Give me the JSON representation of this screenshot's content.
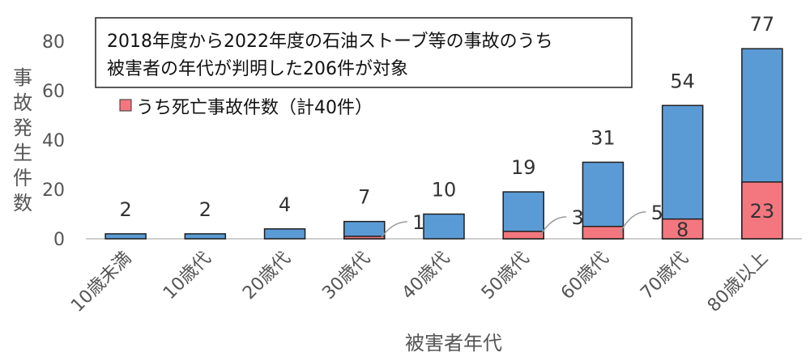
{
  "chart_data": {
    "type": "bar",
    "categories": [
      "10歳未満",
      "10歳代",
      "20歳代",
      "30歳代",
      "40歳代",
      "50歳代",
      "60歳代",
      "70歳代",
      "80歳以上"
    ],
    "series": [
      {
        "name": "",
        "values": [
          2,
          2,
          4,
          7,
          10,
          19,
          31,
          54,
          77
        ],
        "color": "#5b9bd5"
      },
      {
        "name": "うち死亡事故件数（計40件）",
        "values": [
          0,
          0,
          0,
          1,
          0,
          3,
          5,
          8,
          23
        ],
        "color": "#f4777f"
      }
    ],
    "xlabel": "被害者年代",
    "ylabel": "事故発生件数",
    "ylim": [
      0,
      80
    ],
    "yticks": [
      0,
      20,
      40,
      60,
      80
    ],
    "annotation": [
      "2018年度から2022年度の石油ストーブ等の事故のうち",
      "被害者の年代が判明した206件が対象"
    ],
    "legend_position": "top-left",
    "grid": false
  }
}
